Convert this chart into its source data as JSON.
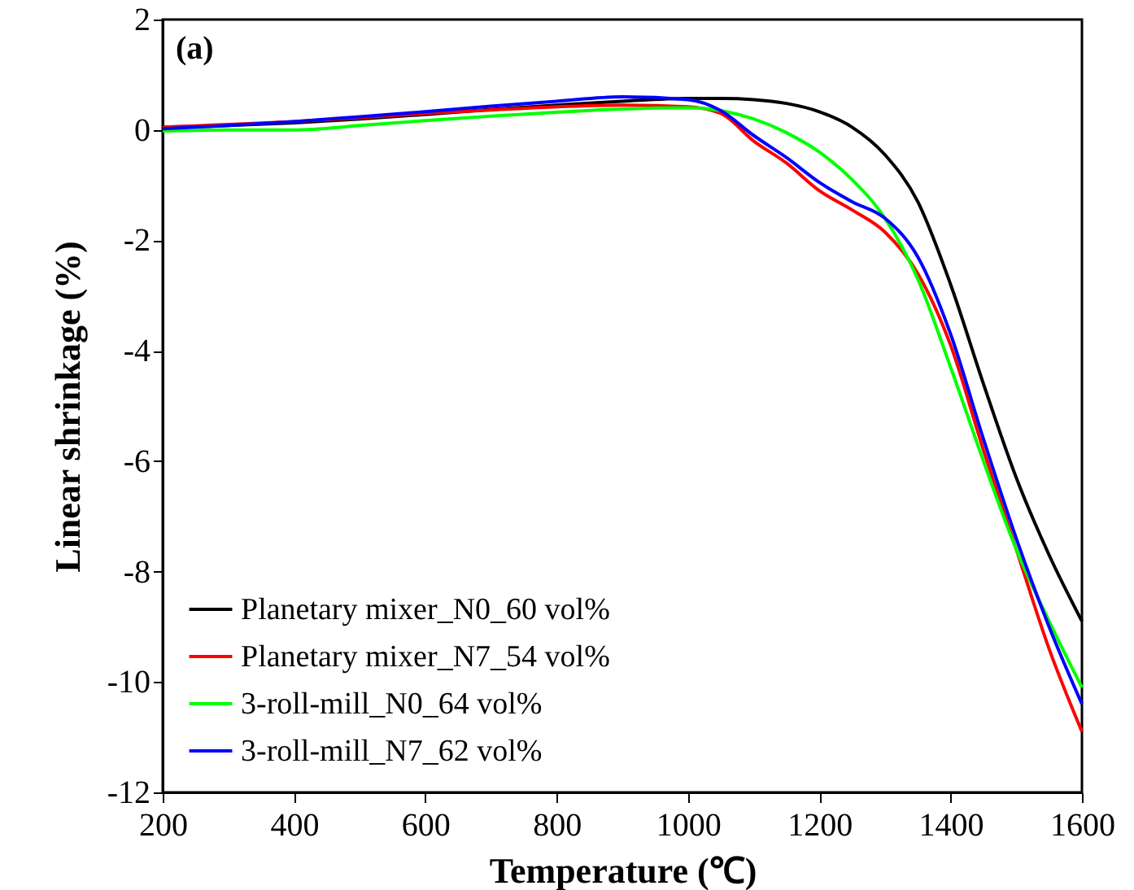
{
  "chart_data": {
    "type": "line",
    "xlabel": "Temperature (℃)",
    "ylabel": "Linear shrinkage (%)",
    "annotations": [
      "(a)"
    ],
    "xlim": [
      200,
      1600
    ],
    "xticks": [
      200,
      400,
      600,
      800,
      1000,
      1200,
      1400,
      1600
    ],
    "ylim": [
      -12,
      2
    ],
    "yticks": [
      -12,
      -10,
      -8,
      -6,
      -4,
      -2,
      0,
      2
    ],
    "grid": false,
    "legend": "bottom left",
    "line_style": "solid",
    "x": [
      200,
      300,
      400,
      500,
      600,
      700,
      800,
      900,
      1000,
      1050,
      1100,
      1150,
      1200,
      1250,
      1300,
      1350,
      1400,
      1450,
      1500,
      1550,
      1600
    ],
    "series": [
      {
        "name": "Planetary mixer_N0_60 vol%",
        "color": "#000000",
        "values": [
          0.05,
          0.08,
          0.13,
          0.2,
          0.28,
          0.37,
          0.45,
          0.52,
          0.57,
          0.57,
          0.55,
          0.48,
          0.33,
          0.05,
          -0.45,
          -1.3,
          -2.8,
          -4.6,
          -6.3,
          -7.7,
          -8.9
        ]
      },
      {
        "name": "Planetary mixer_N7_54 vol%",
        "color": "#ff0000",
        "values": [
          0.05,
          0.1,
          0.15,
          0.22,
          0.3,
          0.36,
          0.42,
          0.45,
          0.42,
          0.3,
          -0.2,
          -0.6,
          -1.1,
          -1.45,
          -1.85,
          -2.6,
          -3.9,
          -5.8,
          -7.6,
          -9.4,
          -10.9
        ]
      },
      {
        "name": "3-roll-mill_N0_64 vol%",
        "color": "#00ff00",
        "values": [
          -0.02,
          0.0,
          0.0,
          0.08,
          0.17,
          0.25,
          0.32,
          0.38,
          0.4,
          0.35,
          0.2,
          -0.05,
          -0.4,
          -0.9,
          -1.6,
          -2.7,
          -4.3,
          -6.0,
          -7.6,
          -8.9,
          -10.1
        ]
      },
      {
        "name": "3-roll-mill_N7_62 vol%",
        "color": "#0000ff",
        "values": [
          0.02,
          0.08,
          0.15,
          0.24,
          0.33,
          0.43,
          0.52,
          0.6,
          0.55,
          0.35,
          -0.1,
          -0.5,
          -0.95,
          -1.3,
          -1.6,
          -2.3,
          -3.7,
          -5.6,
          -7.4,
          -9.0,
          -10.4
        ]
      }
    ]
  }
}
